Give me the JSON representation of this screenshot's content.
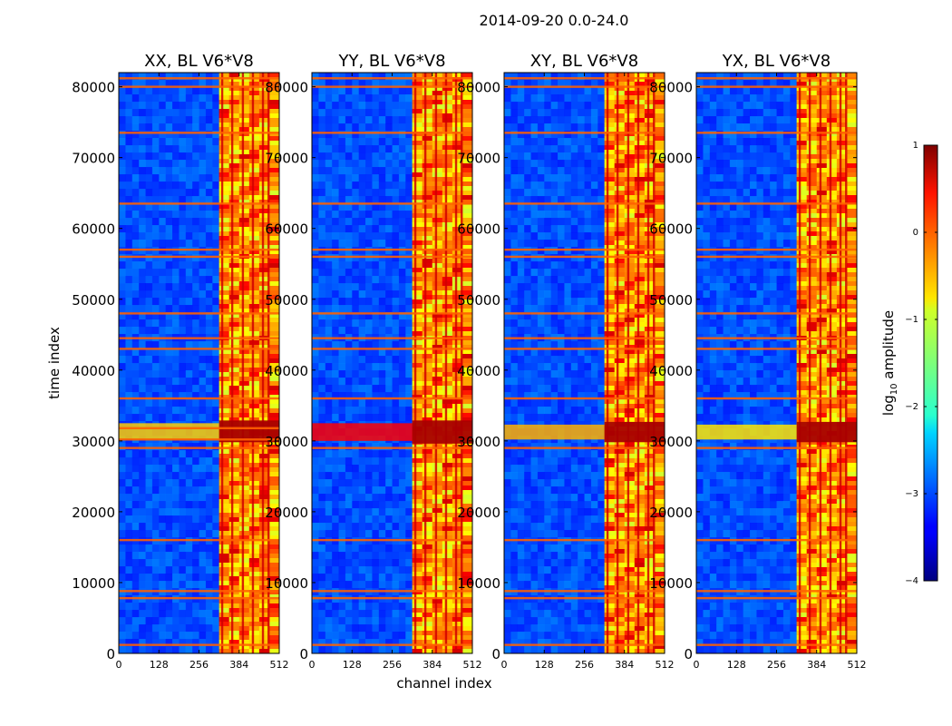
{
  "figure": {
    "suptitle": "2014-09-20 0.0-24.0",
    "ylabel": "time index",
    "xlabel": "channel index"
  },
  "colorbar": {
    "label_prefix": "log",
    "label_sub": "10",
    "label_suffix": " amplitude",
    "vmin": -4,
    "vmax": 1,
    "ticks": [
      1,
      0,
      -1,
      -2,
      -3,
      -4
    ],
    "tick_labels": [
      "1",
      "0",
      "−1",
      "−2",
      "−3",
      "−4"
    ],
    "cmap": "jet"
  },
  "chart_data": [
    {
      "type": "heatmap",
      "title": "XX, BL V6*V8",
      "xlim": [
        0,
        512
      ],
      "ylim": [
        0,
        82000
      ],
      "xticks": [
        0,
        128,
        256,
        384,
        512
      ],
      "yticks": [
        0,
        10000,
        20000,
        30000,
        40000,
        50000,
        60000,
        70000,
        80000
      ],
      "background_log_amp": -3.0,
      "rfi_band_channels": [
        320,
        512
      ],
      "vertical_lines_channels": [
        330,
        362,
        396,
        428,
        460,
        478
      ],
      "horizontal_lines_time": [
        1200,
        7800,
        8800,
        16000,
        29000,
        30200,
        31800,
        36000,
        43000,
        44500,
        48000,
        56000,
        57000,
        63500,
        73500,
        80000,
        81200
      ],
      "bright_event": {
        "time_range": [
          30200,
          32500
        ],
        "intensity": 0.25
      }
    },
    {
      "type": "heatmap",
      "title": "YY, BL V6*V8",
      "xlim": [
        0,
        512
      ],
      "ylim": [
        0,
        82000
      ],
      "xticks": [
        0,
        128,
        256,
        384,
        512
      ],
      "yticks": [
        0,
        10000,
        20000,
        30000,
        40000,
        50000,
        60000,
        70000,
        80000
      ],
      "background_log_amp": -3.0,
      "rfi_band_channels": [
        320,
        512
      ],
      "vertical_lines_channels": [
        330,
        362,
        396,
        428,
        460,
        478
      ],
      "horizontal_lines_time": [
        1200,
        7800,
        8800,
        16000,
        29000,
        36000,
        43000,
        44500,
        48000,
        56000,
        57000,
        63500,
        73500,
        80000,
        81200
      ],
      "bright_event": {
        "time_range": [
          30000,
          32500
        ],
        "intensity": 0.65
      }
    },
    {
      "type": "heatmap",
      "title": "XY, BL V6*V8",
      "xlim": [
        0,
        512
      ],
      "ylim": [
        0,
        82000
      ],
      "xticks": [
        0,
        128,
        256,
        384,
        512
      ],
      "yticks": [
        0,
        10000,
        20000,
        30000,
        40000,
        50000,
        60000,
        70000,
        80000
      ],
      "background_log_amp": -3.0,
      "rfi_band_channels": [
        320,
        512
      ],
      "vertical_lines_channels": [
        330,
        362,
        396,
        428,
        460,
        478
      ],
      "horizontal_lines_time": [
        1200,
        7800,
        8800,
        16000,
        29000,
        36000,
        43000,
        44500,
        48000,
        56000,
        57000,
        63500,
        73500,
        80000,
        81200
      ],
      "bright_event": {
        "time_range": [
          30200,
          32300
        ],
        "intensity": 0.3
      }
    },
    {
      "type": "heatmap",
      "title": "YX, BL V6*V8",
      "xlim": [
        0,
        512
      ],
      "ylim": [
        0,
        82000
      ],
      "xticks": [
        0,
        128,
        256,
        384,
        512
      ],
      "yticks": [
        0,
        10000,
        20000,
        30000,
        40000,
        50000,
        60000,
        70000,
        80000
      ],
      "background_log_amp": -3.0,
      "rfi_band_channels": [
        320,
        512
      ],
      "vertical_lines_channels": [
        330,
        362,
        396,
        428,
        460,
        478
      ],
      "horizontal_lines_time": [
        1200,
        7800,
        8800,
        16000,
        29000,
        36000,
        43000,
        44500,
        48000,
        56000,
        57000,
        63500,
        73500,
        80000,
        81200
      ],
      "bright_event": {
        "time_range": [
          30200,
          32300
        ],
        "intensity": 0.2
      }
    }
  ]
}
